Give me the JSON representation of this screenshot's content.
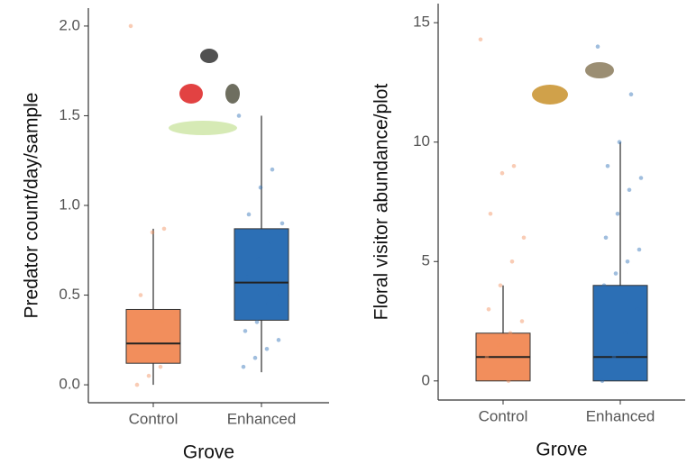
{
  "chart_data": [
    {
      "type": "box",
      "ylabel": "Predator count/day/sample",
      "xlabel": "Grove",
      "categories": [
        "Control",
        "Enhanced"
      ],
      "colors": [
        "#f28e5c",
        "#2c6fb5"
      ],
      "boxes": [
        {
          "min": 0,
          "q1": 0.12,
          "median": 0.23,
          "q3": 0.42,
          "max": 0.87
        },
        {
          "min": 0.07,
          "q1": 0.36,
          "median": 0.57,
          "q3": 0.87,
          "max": 1.5
        }
      ],
      "points": [
        [
          2.0,
          0.87,
          0.85,
          0.5,
          0.4,
          0.35,
          0.3,
          0.25,
          0.15,
          0.1,
          0.05,
          0.0
        ],
        [
          1.5,
          1.2,
          1.1,
          0.95,
          0.9,
          0.8,
          0.7,
          0.6,
          0.5,
          0.45,
          0.35,
          0.3,
          0.25,
          0.2,
          0.15,
          0.1
        ]
      ],
      "ylim": [
        -0.1,
        2.1
      ],
      "yticks": [
        {
          "value": 0,
          "label": "0.0"
        },
        {
          "value": 0.5,
          "label": "0.5"
        },
        {
          "value": 1,
          "label": "1.0"
        },
        {
          "value": 1.5,
          "label": "1.5"
        },
        {
          "value": 2,
          "label": "2.0"
        }
      ]
    },
    {
      "type": "box",
      "ylabel": "Floral visitor abundance/plot",
      "xlabel": "Grove",
      "categories": [
        "Control",
        "Enhanced"
      ],
      "colors": [
        "#f28e5c",
        "#2c6fb5"
      ],
      "boxes": [
        {
          "min": 0,
          "q1": 0,
          "median": 1,
          "q3": 2,
          "max": 4
        },
        {
          "min": 0,
          "q1": 0,
          "median": 1,
          "q3": 4,
          "max": 10
        }
      ],
      "points": [
        [
          14.3,
          9,
          8.7,
          7,
          6,
          5,
          4,
          3,
          2.5,
          2,
          1.5,
          1,
          0.5,
          0
        ],
        [
          14,
          12,
          10,
          9,
          8.5,
          8,
          7,
          6,
          5.5,
          5,
          4.5,
          4,
          3,
          2,
          1,
          0
        ]
      ],
      "ylim": [
        -0.8,
        15.8
      ],
      "yticks": [
        0,
        5,
        10,
        15
      ]
    }
  ]
}
